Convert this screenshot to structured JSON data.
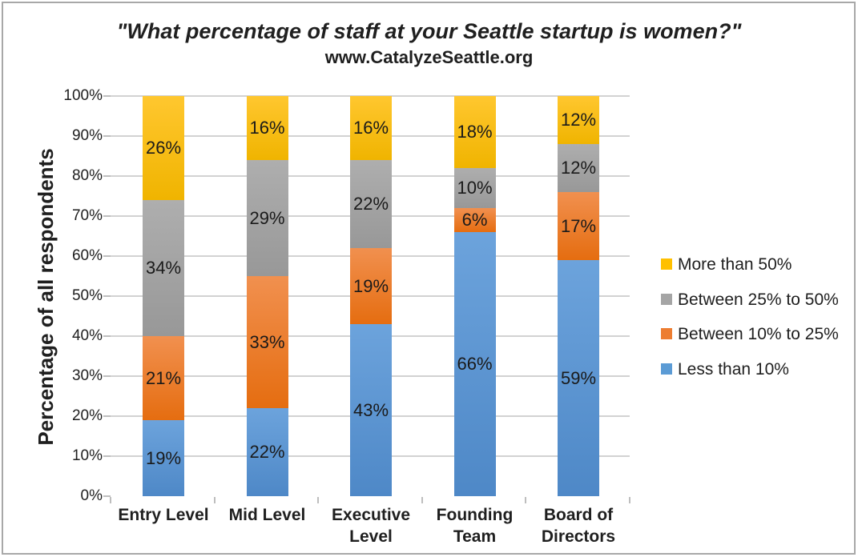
{
  "page": {
    "background": "#ffffff",
    "border_color": "#a8a8a8"
  },
  "chart_data": {
    "type": "bar",
    "stacked": true,
    "title": "\"What percentage of staff at your Seattle startup is women?\"",
    "subtitle": "www.CatalyzeSeattle.org",
    "ylabel": "Percentage of all respondents",
    "xlabel": "",
    "categories": [
      "Entry Level",
      "Mid Level",
      "Executive Level",
      "Founding Team",
      "Board of Directors"
    ],
    "series": [
      {
        "name": "Less than 10%",
        "color": "#5B9BD5",
        "gradient": [
          "#6CA3DC",
          "#4E88C7"
        ],
        "values": [
          19,
          22,
          43,
          66,
          59
        ]
      },
      {
        "name": "Between 10% to 25%",
        "color": "#ED7D31",
        "gradient": [
          "#F1904F",
          "#E56D10"
        ],
        "values": [
          21,
          33,
          19,
          6,
          17
        ]
      },
      {
        "name": "Between 25% to 50%",
        "color": "#A5A5A5",
        "gradient": [
          "#AEAEAE",
          "#989898"
        ],
        "values": [
          34,
          29,
          22,
          10,
          12
        ]
      },
      {
        "name": "More than 50%",
        "color": "#FFC000",
        "gradient": [
          "#FFC72F",
          "#F0B400"
        ],
        "values": [
          26,
          16,
          16,
          18,
          12
        ]
      }
    ],
    "legend": [
      "More than 50%",
      "Between 25% to 50%",
      "Between 10% to 25%",
      "Less than 10%"
    ],
    "legend_position": "right",
    "y_ticks": [
      "0%",
      "10%",
      "20%",
      "30%",
      "40%",
      "50%",
      "60%",
      "70%",
      "80%",
      "90%",
      "100%"
    ],
    "ylim": [
      0,
      100
    ],
    "grid": true,
    "value_label_suffix": "%"
  }
}
